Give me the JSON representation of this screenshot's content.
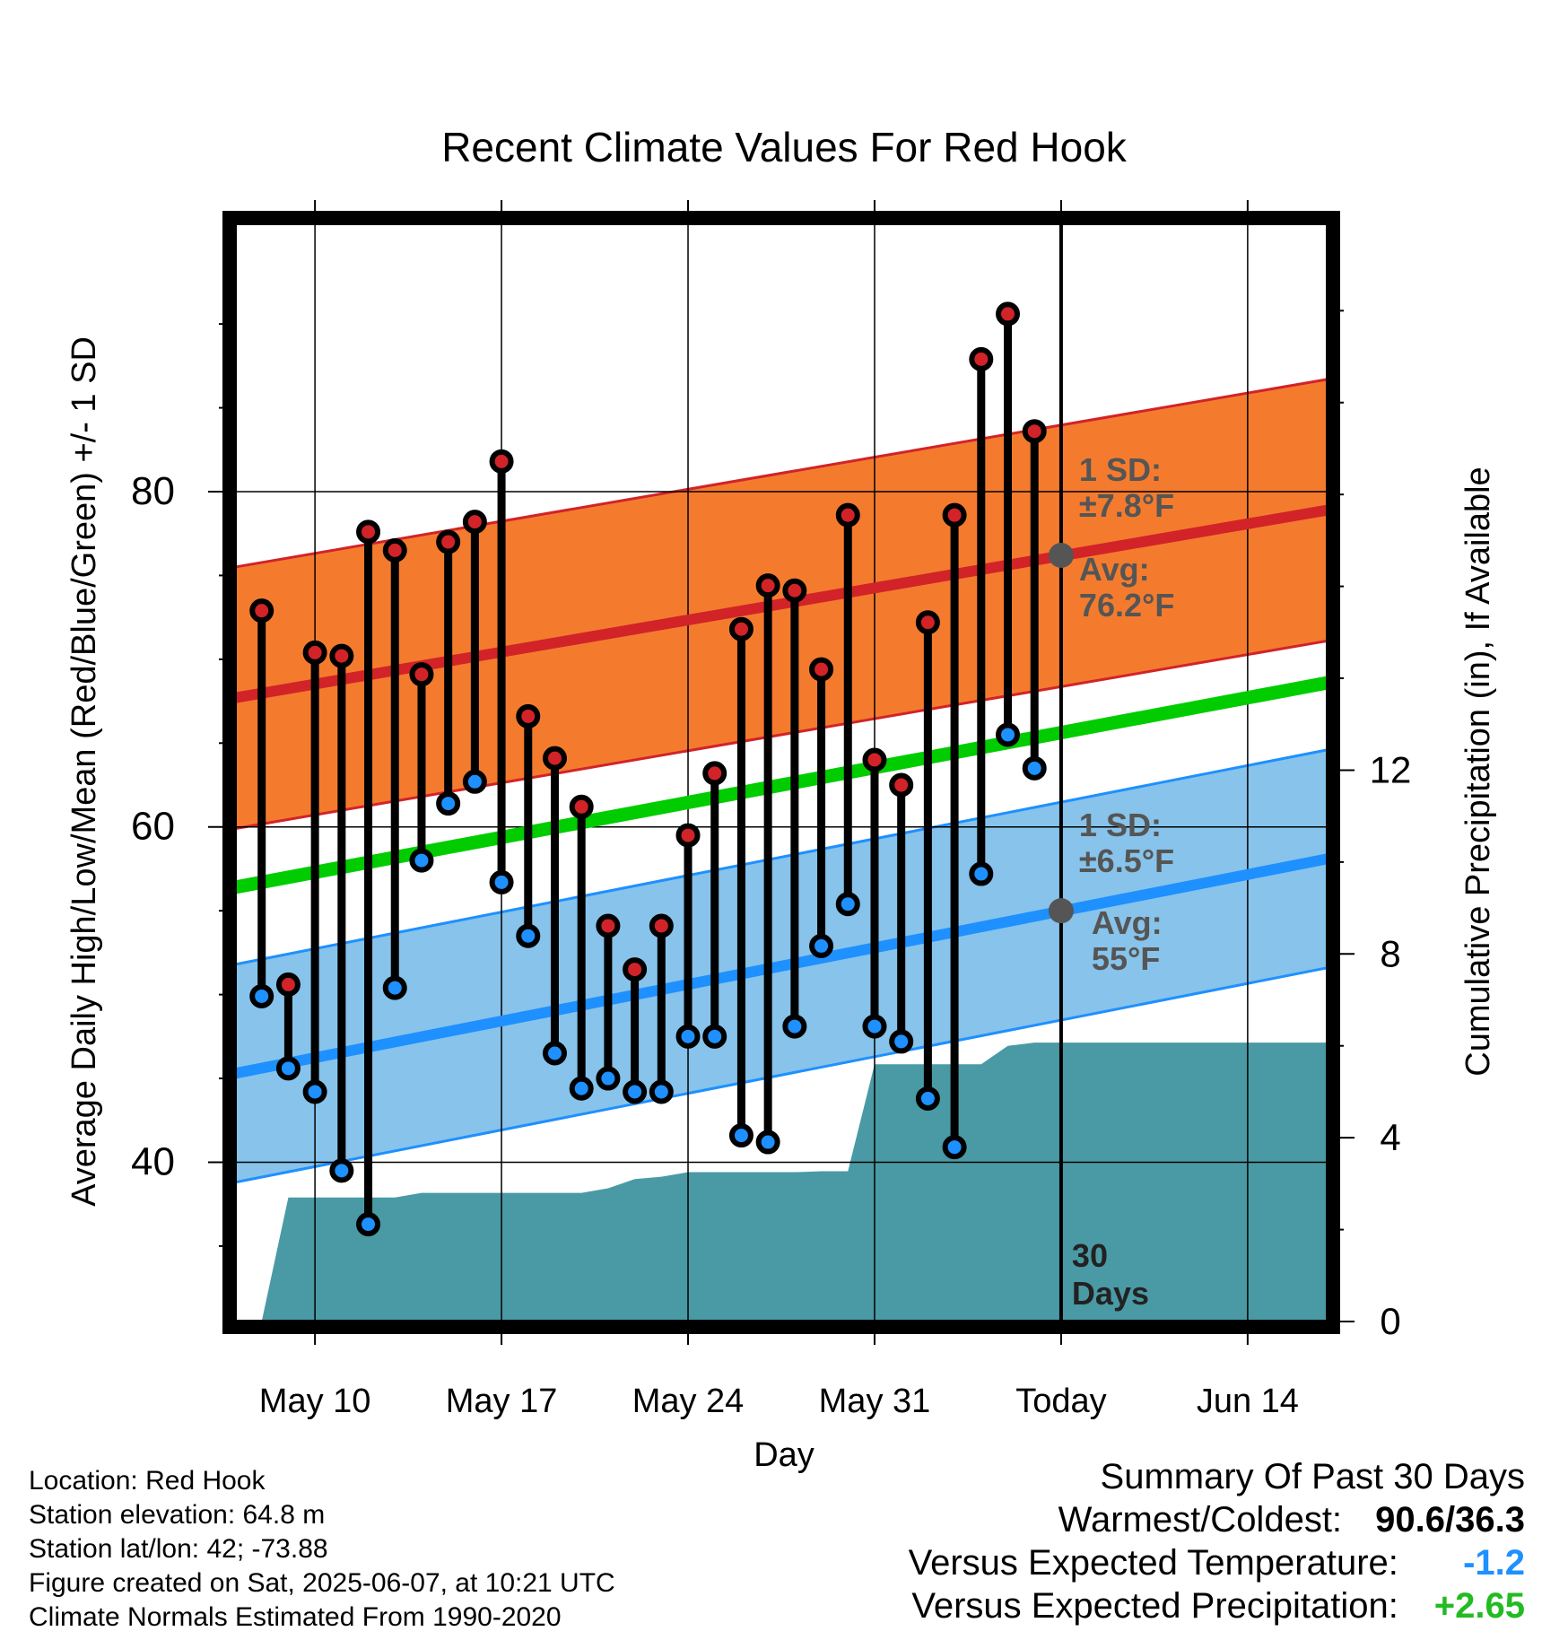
{
  "chart_data": {
    "type": "line",
    "title": "Recent Climate Values For Red Hook",
    "xlabel": "Day",
    "ylabel": "Average Daily High/Low/Mean (Red/Blue/Green) +/- 1 SD",
    "y2label": "Cumulative Precipitation (in), If Available",
    "xlim": [
      "2025-05-07",
      "2025-06-17"
    ],
    "ylim": [
      30.5,
      96
    ],
    "y2lim": [
      0,
      23.9
    ],
    "x_ticks": [
      {
        "date": "2025-05-10",
        "label": "May 10"
      },
      {
        "date": "2025-05-17",
        "label": "May 17"
      },
      {
        "date": "2025-05-24",
        "label": "May 24"
      },
      {
        "date": "2025-05-31",
        "label": "May 31"
      },
      {
        "date": "2025-06-07",
        "label": "Today"
      },
      {
        "date": "2025-06-14",
        "label": "Jun 14"
      }
    ],
    "y_ticks": [
      40,
      60,
      80
    ],
    "y2_ticks": [
      0,
      4,
      8,
      12
    ],
    "grid": true,
    "today": "2025-06-07",
    "days_label": "30\nDays",
    "daily": [
      {
        "date": "2025-05-08",
        "high": 72.9,
        "low": 49.9
      },
      {
        "date": "2025-05-09",
        "high": 50.6,
        "low": 45.6
      },
      {
        "date": "2025-05-10",
        "high": 70.4,
        "low": 44.2
      },
      {
        "date": "2025-05-11",
        "high": 70.2,
        "low": 39.5
      },
      {
        "date": "2025-05-12",
        "high": 77.6,
        "low": 36.3
      },
      {
        "date": "2025-05-13",
        "high": 76.5,
        "low": 50.4
      },
      {
        "date": "2025-05-14",
        "high": 69.1,
        "low": 58.0
      },
      {
        "date": "2025-05-15",
        "high": 77.0,
        "low": 61.4
      },
      {
        "date": "2025-05-16",
        "high": 78.2,
        "low": 62.7
      },
      {
        "date": "2025-05-17",
        "high": 81.8,
        "low": 56.7
      },
      {
        "date": "2025-05-18",
        "high": 66.6,
        "low": 53.5
      },
      {
        "date": "2025-05-19",
        "high": 64.1,
        "low": 46.5
      },
      {
        "date": "2025-05-20",
        "high": 61.2,
        "low": 44.4
      },
      {
        "date": "2025-05-21",
        "high": 54.1,
        "low": 45.0
      },
      {
        "date": "2025-05-22",
        "high": 51.5,
        "low": 44.2
      },
      {
        "date": "2025-05-23",
        "high": 54.1,
        "low": 44.2
      },
      {
        "date": "2025-05-24",
        "high": 59.5,
        "low": 47.5
      },
      {
        "date": "2025-05-25",
        "high": 63.2,
        "low": 47.5
      },
      {
        "date": "2025-05-26",
        "high": 71.8,
        "low": 41.6
      },
      {
        "date": "2025-05-27",
        "high": 74.4,
        "low": 41.2
      },
      {
        "date": "2025-05-28",
        "high": 74.1,
        "low": 48.1
      },
      {
        "date": "2025-05-29",
        "high": 69.4,
        "low": 52.9
      },
      {
        "date": "2025-05-30",
        "high": 78.6,
        "low": 55.4
      },
      {
        "date": "2025-05-31",
        "high": 64.0,
        "low": 48.1
      },
      {
        "date": "2025-06-01",
        "high": 62.5,
        "low": 47.2
      },
      {
        "date": "2025-06-02",
        "high": 72.2,
        "low": 43.8
      },
      {
        "date": "2025-06-03",
        "high": 78.6,
        "low": 40.9
      },
      {
        "date": "2025-06-04",
        "high": 87.9,
        "low": 57.2
      },
      {
        "date": "2025-06-05",
        "high": 90.6,
        "low": 65.5
      },
      {
        "date": "2025-06-06",
        "high": 83.6,
        "low": 63.5
      }
    ],
    "normals": {
      "high": {
        "start_date": "2025-05-07",
        "start": 67.7,
        "end_date": "2025-06-17",
        "end": 78.9,
        "sd": 7.8
      },
      "low": {
        "start_date": "2025-05-07",
        "start": 45.3,
        "end_date": "2025-06-17",
        "end": 58.1,
        "sd": 6.5
      },
      "mean": {
        "start_date": "2025-05-07",
        "start": 56.4,
        "end_date": "2025-06-17",
        "end": 68.6
      }
    },
    "today_avg": {
      "high": 76.2,
      "low": 55
    },
    "annotations": {
      "high_sd": [
        "1 SD:",
        "±7.8°F"
      ],
      "high_avg": [
        "Avg:",
        "76.2°F"
      ],
      "low_sd": [
        "1 SD:",
        "±6.5°F"
      ],
      "low_avg": [
        "Avg:",
        "55°F"
      ]
    },
    "precip_cumulative": [
      {
        "date": "2025-05-08",
        "in": 0.0
      },
      {
        "date": "2025-05-09",
        "in": 2.7
      },
      {
        "date": "2025-05-10",
        "in": 2.7
      },
      {
        "date": "2025-05-11",
        "in": 2.7
      },
      {
        "date": "2025-05-12",
        "in": 2.7
      },
      {
        "date": "2025-05-13",
        "in": 2.7
      },
      {
        "date": "2025-05-14",
        "in": 2.8
      },
      {
        "date": "2025-05-15",
        "in": 2.8
      },
      {
        "date": "2025-05-16",
        "in": 2.8
      },
      {
        "date": "2025-05-17",
        "in": 2.8
      },
      {
        "date": "2025-05-18",
        "in": 2.8
      },
      {
        "date": "2025-05-19",
        "in": 2.8
      },
      {
        "date": "2025-05-20",
        "in": 2.8
      },
      {
        "date": "2025-05-21",
        "in": 2.9
      },
      {
        "date": "2025-05-22",
        "in": 3.1
      },
      {
        "date": "2025-05-23",
        "in": 3.15
      },
      {
        "date": "2025-05-24",
        "in": 3.25
      },
      {
        "date": "2025-05-25",
        "in": 3.25
      },
      {
        "date": "2025-05-26",
        "in": 3.25
      },
      {
        "date": "2025-05-27",
        "in": 3.25
      },
      {
        "date": "2025-05-28",
        "in": 3.25
      },
      {
        "date": "2025-05-29",
        "in": 3.27
      },
      {
        "date": "2025-05-30",
        "in": 3.27
      },
      {
        "date": "2025-05-31",
        "in": 5.6
      },
      {
        "date": "2025-06-01",
        "in": 5.6
      },
      {
        "date": "2025-06-02",
        "in": 5.6
      },
      {
        "date": "2025-06-03",
        "in": 5.6
      },
      {
        "date": "2025-06-04",
        "in": 5.6
      },
      {
        "date": "2025-06-05",
        "in": 6.0
      },
      {
        "date": "2025-06-06",
        "in": 6.07
      },
      {
        "date": "2025-06-17",
        "in": 6.07
      }
    ],
    "colors": {
      "high": "#d22328",
      "low": "#1e90ff",
      "mean": "#00cc00",
      "high_band": "#f47b2e",
      "low_band": "#87c3ea",
      "precip": "#4a9aa5",
      "annotation": "#555555"
    }
  },
  "footer": {
    "location": "Location: Red Hook",
    "elevation": "Station elevation: 64.8 m",
    "latlon": "Station lat/lon: 42; -73.88",
    "created": "Figure created on Sat, 2025-06-07, at 10:21 UTC",
    "normals": "Climate Normals Estimated From 1990-2020"
  },
  "summary": {
    "title": "Summary Of Past 30 Days",
    "warm_cold_label": "Warmest/Coldest:",
    "warm_cold_value": "90.6/36.3",
    "temp_label": "Versus Expected Temperature:",
    "temp_value": "-1.2",
    "temp_color": "#1e90ff",
    "precip_label": "Versus Expected Precipitation:",
    "precip_value": "+2.65",
    "precip_color": "#22bb22"
  }
}
